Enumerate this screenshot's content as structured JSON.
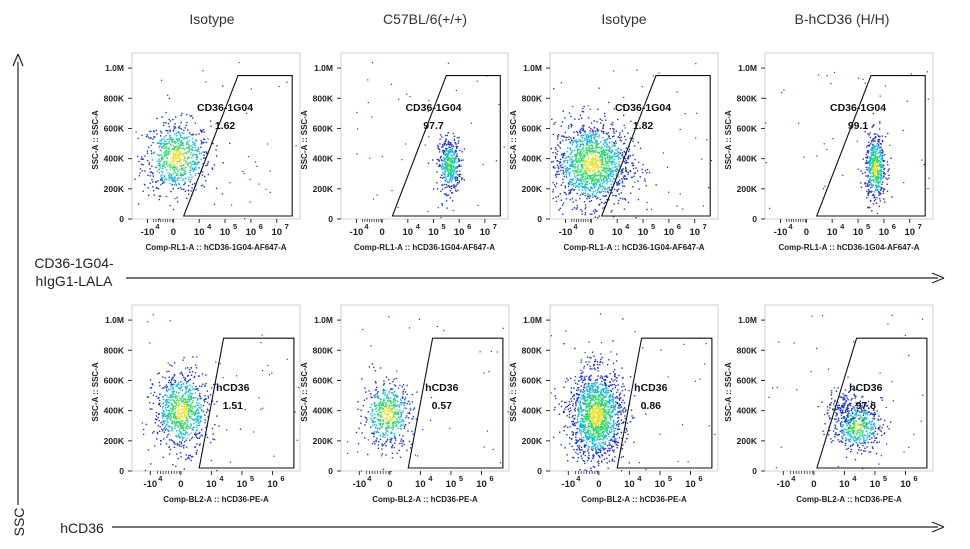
{
  "figure": {
    "column_titles": [
      "Isotype",
      "C57BL/6(+/+)",
      "Isotype",
      "B-hCD36 (H/H)"
    ],
    "row_labels": [
      {
        "lines": [
          "CD36-1G04-",
          "hIgG1-LALA"
        ]
      },
      {
        "lines": [
          "hCD36"
        ]
      }
    ],
    "y_axis_label": "SSC"
  },
  "colors": {
    "density_low": "#2036c8",
    "density_mid1": "#18b7d8",
    "density_mid2": "#2fd86a",
    "density_high": "#e8e034",
    "axis": "#333333",
    "gate": "#111111"
  },
  "chart_data": [
    {
      "type": "scatter",
      "plot": "flow-density",
      "gate_label": "CD36-1G04",
      "gate_value": "1.62",
      "ylabel": "SSC-A :: SSC-A",
      "xlabel": "Comp-RL1-A :: hCD36-1G04-AF647-A",
      "yticks": [
        "0",
        "200K",
        "400K",
        "600K",
        "800K",
        "1.0M"
      ],
      "xticks": [
        {
          "base": "-10",
          "exp": "4"
        },
        {
          "base": "0",
          "exp": ""
        },
        {
          "base": "10",
          "exp": "4"
        },
        {
          "base": "10",
          "exp": "5"
        },
        {
          "base": "10",
          "exp": "6"
        },
        {
          "base": "10",
          "exp": "7"
        }
      ],
      "gate_polygon": [
        [
          0.4,
          20000
        ],
        [
          4.6,
          20000
        ],
        [
          4.6,
          950000
        ],
        [
          2.5,
          950000
        ]
      ],
      "clusters": [
        {
          "x": 0.1,
          "y": 410000,
          "sx": 0.65,
          "sy": 120000,
          "n": 700
        }
      ]
    },
    {
      "type": "scatter",
      "plot": "flow-density",
      "gate_label": "CD36-1G04",
      "gate_value": "97.7",
      "ylabel": "SSC-A :: SSC-A",
      "xlabel": "Comp-RL1-A :: hCD36-1G04-AF647-A",
      "yticks": [
        "0",
        "200K",
        "400K",
        "600K",
        "800K",
        "1.0M"
      ],
      "xticks": [
        {
          "base": "-10",
          "exp": "4"
        },
        {
          "base": "0",
          "exp": ""
        },
        {
          "base": "10",
          "exp": "4"
        },
        {
          "base": "10",
          "exp": "5"
        },
        {
          "base": "10",
          "exp": "6"
        },
        {
          "base": "10",
          "exp": "7"
        }
      ],
      "gate_polygon": [
        [
          0.4,
          20000
        ],
        [
          4.6,
          20000
        ],
        [
          4.6,
          950000
        ],
        [
          2.5,
          950000
        ]
      ],
      "clusters": [
        {
          "x": 2.6,
          "y": 360000,
          "sx": 0.22,
          "sy": 90000,
          "n": 400
        }
      ]
    },
    {
      "type": "scatter",
      "plot": "flow-density",
      "gate_label": "CD36-1G04",
      "gate_value": "1.82",
      "ylabel": "SSC-A :: SSC-A",
      "xlabel": "Comp-RL1-A :: hCD36-1G04-AF647-A",
      "yticks": [
        "0",
        "200K",
        "400K",
        "600K",
        "800K",
        "1.0M"
      ],
      "xticks": [
        {
          "base": "-10",
          "exp": "4"
        },
        {
          "base": "0",
          "exp": ""
        },
        {
          "base": "10",
          "exp": "4"
        },
        {
          "base": "10",
          "exp": "5"
        },
        {
          "base": "10",
          "exp": "6"
        },
        {
          "base": "10",
          "exp": "7"
        }
      ],
      "gate_polygon": [
        [
          0.4,
          20000
        ],
        [
          4.6,
          20000
        ],
        [
          4.6,
          950000
        ],
        [
          2.5,
          950000
        ]
      ],
      "clusters": [
        {
          "x": 0.0,
          "y": 370000,
          "sx": 0.75,
          "sy": 140000,
          "n": 1400
        }
      ]
    },
    {
      "type": "scatter",
      "plot": "flow-density",
      "gate_label": "CD36-1G04",
      "gate_value": "99.1",
      "ylabel": "SSC-A :: SSC-A",
      "xlabel": "Comp-RL1-A :: hCD36-1G04-AF647-A",
      "yticks": [
        "0",
        "200K",
        "400K",
        "600K",
        "800K",
        "1.0M"
      ],
      "xticks": [
        {
          "base": "-10",
          "exp": "4"
        },
        {
          "base": "0",
          "exp": ""
        },
        {
          "base": "10",
          "exp": "4"
        },
        {
          "base": "10",
          "exp": "5"
        },
        {
          "base": "10",
          "exp": "6"
        },
        {
          "base": "10",
          "exp": "7"
        }
      ],
      "gate_polygon": [
        [
          0.4,
          20000
        ],
        [
          4.6,
          20000
        ],
        [
          4.6,
          950000
        ],
        [
          2.5,
          950000
        ]
      ],
      "clusters": [
        {
          "x": 2.65,
          "y": 340000,
          "sx": 0.2,
          "sy": 110000,
          "n": 500
        }
      ]
    },
    {
      "type": "scatter",
      "plot": "flow-density",
      "gate_label": "hCD36",
      "gate_value": "1.51",
      "ylabel": "SSC-A :: SSC-A",
      "xlabel": "Comp-BL2-A :: hCD36-PE-A",
      "yticks": [
        "0",
        "200K",
        "400K",
        "600K",
        "800K",
        "1.0M"
      ],
      "xticks": [
        {
          "base": "-10",
          "exp": "4"
        },
        {
          "base": "0",
          "exp": ""
        },
        {
          "base": "10",
          "exp": "4"
        },
        {
          "base": "10",
          "exp": "5"
        },
        {
          "base": "10",
          "exp": "6"
        }
      ],
      "gate_polygon": [
        [
          0.6,
          20000
        ],
        [
          3.7,
          20000
        ],
        [
          3.7,
          880000
        ],
        [
          1.4,
          880000
        ]
      ],
      "clusters": [
        {
          "x": 0.0,
          "y": 400000,
          "sx": 0.45,
          "sy": 130000,
          "n": 800
        }
      ]
    },
    {
      "type": "scatter",
      "plot": "flow-density",
      "gate_label": "hCD36",
      "gate_value": "0.57",
      "ylabel": "SSC-A :: SSC-A",
      "xlabel": "Comp-BL2-A :: hCD36-PE-A",
      "yticks": [
        "0",
        "200K",
        "400K",
        "600K",
        "800K",
        "1.0M"
      ],
      "xticks": [
        {
          "base": "-10",
          "exp": "4"
        },
        {
          "base": "0",
          "exp": ""
        },
        {
          "base": "10",
          "exp": "4"
        },
        {
          "base": "10",
          "exp": "5"
        },
        {
          "base": "10",
          "exp": "6"
        }
      ],
      "gate_polygon": [
        [
          0.6,
          20000
        ],
        [
          3.7,
          20000
        ],
        [
          3.7,
          880000
        ],
        [
          1.4,
          880000
        ]
      ],
      "clusters": [
        {
          "x": -0.1,
          "y": 380000,
          "sx": 0.4,
          "sy": 110000,
          "n": 500
        }
      ]
    },
    {
      "type": "scatter",
      "plot": "flow-density",
      "gate_label": "hCD36",
      "gate_value": "0.86",
      "ylabel": "SSC-A :: SSC-A",
      "xlabel": "Comp-BL2-A :: hCD36-PE-A",
      "yticks": [
        "0",
        "200K",
        "400K",
        "600K",
        "800K",
        "1.0M"
      ],
      "xticks": [
        {
          "base": "-10",
          "exp": "4"
        },
        {
          "base": "0",
          "exp": ""
        },
        {
          "base": "10",
          "exp": "4"
        },
        {
          "base": "10",
          "exp": "5"
        },
        {
          "base": "10",
          "exp": "6"
        }
      ],
      "gate_polygon": [
        [
          0.6,
          20000
        ],
        [
          3.7,
          20000
        ],
        [
          3.7,
          880000
        ],
        [
          1.4,
          880000
        ]
      ],
      "clusters": [
        {
          "x": -0.1,
          "y": 370000,
          "sx": 0.45,
          "sy": 150000,
          "n": 1500
        }
      ]
    },
    {
      "type": "scatter",
      "plot": "flow-density",
      "gate_label": "hCD36",
      "gate_value": "97.8",
      "ylabel": "SSC-A :: SSC-A",
      "xlabel": "Comp-BL2-A :: hCD36-PE-A",
      "yticks": [
        "0",
        "200K",
        "400K",
        "600K",
        "800K",
        "1.0M"
      ],
      "xticks": [
        {
          "base": "-10",
          "exp": "4"
        },
        {
          "base": "0",
          "exp": ""
        },
        {
          "base": "10",
          "exp": "4"
        },
        {
          "base": "10",
          "exp": "5"
        },
        {
          "base": "10",
          "exp": "6"
        }
      ],
      "gate_polygon": [
        [
          0.1,
          20000
        ],
        [
          3.7,
          20000
        ],
        [
          3.7,
          880000
        ],
        [
          1.4,
          880000
        ]
      ],
      "clusters": [
        {
          "x": 1.4,
          "y": 300000,
          "sx": 0.4,
          "sy": 80000,
          "n": 450
        },
        {
          "x": 1.0,
          "y": 420000,
          "sx": 0.3,
          "sy": 60000,
          "n": 150
        }
      ]
    }
  ]
}
